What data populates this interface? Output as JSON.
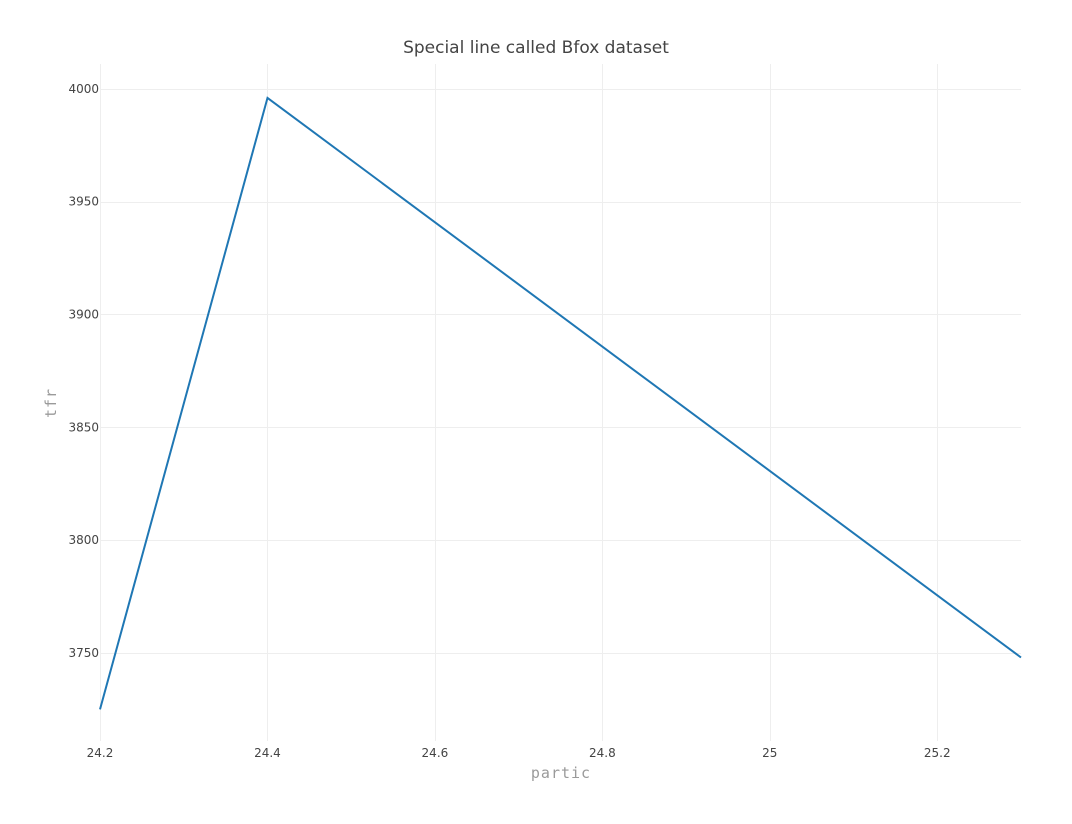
{
  "chart_data": {
    "type": "line",
    "title": "Special line called Bfox dataset",
    "xlabel": "partic",
    "ylabel": "tfr",
    "x": [
      24.2,
      24.4,
      25.3
    ],
    "series": [
      {
        "values": [
          3725,
          3996,
          3748
        ],
        "color": "#1f77b4"
      }
    ],
    "xlim": [
      24.2,
      25.3
    ],
    "ylim": [
      3711,
      4011
    ],
    "x_ticks": [
      24.2,
      24.4,
      24.6,
      24.8,
      25,
      25.2
    ],
    "x_tick_labels": [
      "24.2",
      "24.4",
      "24.6",
      "24.8",
      "25",
      "25.2"
    ],
    "y_ticks": [
      3750,
      3800,
      3850,
      3900,
      3950,
      4000
    ],
    "y_tick_labels": [
      "3750",
      "3800",
      "3850",
      "3900",
      "3950",
      "4000"
    ],
    "grid": true,
    "legend": "none"
  }
}
